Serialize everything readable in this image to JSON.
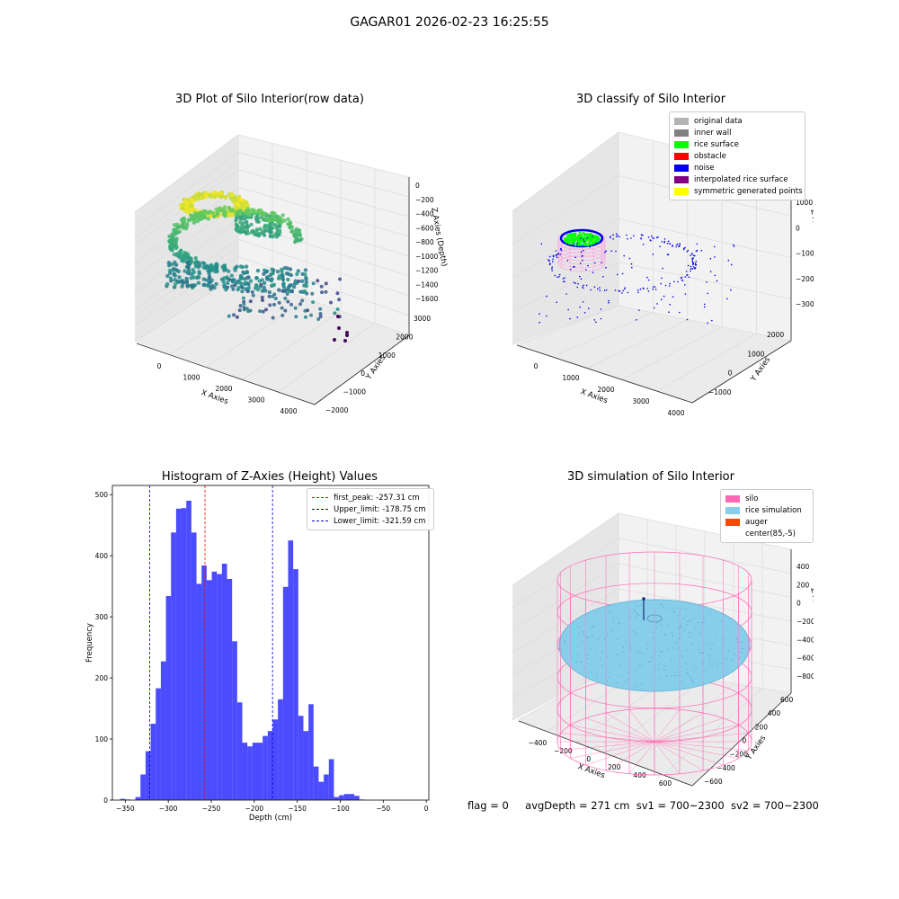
{
  "suptitle": "GAGAR01 2026-02-23 16:25:55",
  "footer": {
    "flag": "flag = 0",
    "avg_depth": "avgDepth = 271 cm",
    "sv1": "sv1 = 700~2300",
    "sv2": "sv2 = 700~2300"
  },
  "chart_data": [
    {
      "type": "scatter",
      "title": "3D Plot of Silo Interior(row data)",
      "xlabel": "X Axies",
      "ylabel": "Y Axies",
      "zlabel": "Z Axies (Depth)",
      "x_ticks": [
        "0",
        "1000",
        "2000",
        "3000",
        "4000"
      ],
      "y_ticks": [
        "−2000",
        "−1000",
        "0",
        "1000",
        "2000",
        "3000"
      ],
      "z_ticks": [
        "−1600",
        "−1400",
        "−1200",
        "−1000",
        "−800",
        "−600",
        "−400",
        "−200",
        "0"
      ],
      "colormap": [
        "#440154",
        "#3b528b",
        "#21918c",
        "#5ec962",
        "#fde725"
      ]
    },
    {
      "type": "scatter",
      "title": "3D classify of Silo Interior",
      "xlabel": "X Axies",
      "ylabel": "Y Axies",
      "zlabel": "Z Axies (Depth)",
      "x_ticks": [
        "0",
        "1000",
        "2000",
        "3000",
        "4000"
      ],
      "y_ticks": [
        "−1000",
        "0",
        "1000",
        "2000"
      ],
      "z_ticks": [
        "−3000",
        "−2000",
        "−1000",
        "0",
        "1000"
      ],
      "legend": [
        {
          "label": "original data",
          "color": "#b3b3b3"
        },
        {
          "label": "inner wall",
          "color": "#808080"
        },
        {
          "label": "rice surface",
          "color": "#00ff00"
        },
        {
          "label": "obstacle",
          "color": "#ff0000"
        },
        {
          "label": "noise",
          "color": "#0000ee"
        },
        {
          "label": "interpolated rice surface",
          "color": "#800080"
        },
        {
          "label": "symmetric generated points",
          "color": "#ffff00"
        }
      ]
    },
    {
      "type": "bar",
      "title": "Histogram of Z-Axies (Height) Values",
      "xlabel": "Depth (cm)",
      "ylabel": "Frequency",
      "xlim": [
        -365,
        3
      ],
      "ylim": [
        0,
        515
      ],
      "x_ticks": [
        -350,
        -300,
        -250,
        -200,
        -150,
        -100,
        -50,
        0
      ],
      "y_ticks": [
        0,
        100,
        200,
        300,
        400,
        500
      ],
      "bin_start": -356,
      "bin_width": 5.92,
      "values": [
        2,
        1,
        0,
        5,
        42,
        80,
        125,
        183,
        227,
        334,
        438,
        477,
        478,
        490,
        438,
        354,
        384,
        360,
        374,
        370,
        387,
        362,
        260,
        160,
        94,
        88,
        94,
        94,
        105,
        113,
        132,
        165,
        349,
        425,
        378,
        138,
        113,
        157,
        55,
        30,
        42,
        67,
        5,
        8,
        10,
        10,
        7,
        1,
        0
      ],
      "bar_color": "#0000ff",
      "vlines": [
        {
          "label": "first_peak: -257.31 cm",
          "x": -257.31,
          "color": "#ff0000"
        },
        {
          "label": "Upper_limit: -178.75 cm",
          "x": -178.75,
          "color": "#0000cc"
        },
        {
          "label": "Lower_limit: -321.59 cm",
          "x": -321.59,
          "color": "#0000cc"
        }
      ]
    },
    {
      "type": "scatter",
      "title": "3D simulation of Silo Interior",
      "xlabel": "X Axies",
      "ylabel": "Y Axies",
      "zlabel": "Z Axies (Depth)",
      "x_ticks": [
        "−400",
        "−200",
        "0",
        "200",
        "400",
        "600"
      ],
      "y_ticks": [
        "−600",
        "−400",
        "−200",
        "0",
        "200",
        "400",
        "600"
      ],
      "z_ticks": [
        "−800",
        "−600",
        "−400",
        "−200",
        "0",
        "200",
        "400"
      ],
      "legend": [
        {
          "label": "silo",
          "color": "#ff69b4"
        },
        {
          "label": "rice simulation",
          "color": "#87ceeb"
        },
        {
          "label": "auger",
          "color": "#ff4500"
        },
        {
          "label": "center(85,-5)",
          "color": ""
        }
      ]
    }
  ]
}
